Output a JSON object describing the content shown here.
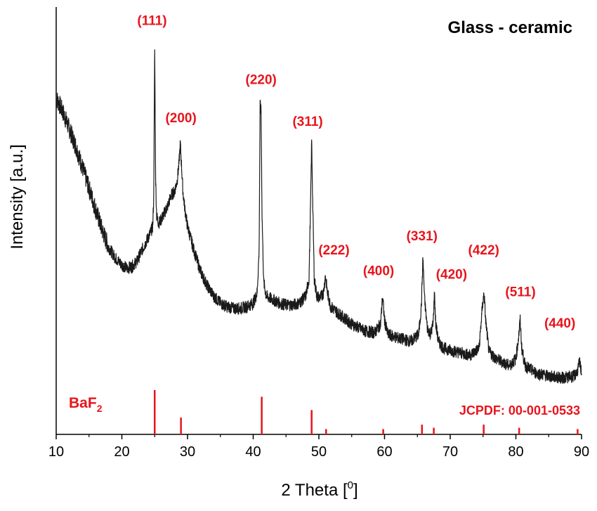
{
  "chart_data": {
    "type": "line",
    "title": "Glass - ceramic",
    "xlabel": "2 Theta",
    "xlabel_unit": "0",
    "ylabel": "Intensity [a.u.]",
    "xlim": [
      10,
      90
    ],
    "ylim": [
      0,
      1
    ],
    "x_ticks": [
      10,
      20,
      30,
      40,
      50,
      60,
      70,
      80,
      90
    ],
    "y_ticks_shown": false,
    "grid": false,
    "colors": {
      "curve": "#1a1a1a",
      "reference": "#e8141c",
      "annotation": "#e8141c",
      "axes": "#000000"
    },
    "series": [
      {
        "x": [
          10,
          11,
          12,
          13,
          14,
          15,
          16,
          17,
          18,
          19,
          20,
          20.8,
          21.5,
          22.3,
          23.0,
          23.8,
          24.3,
          24.7,
          24.85,
          25.0,
          25.15,
          25.3,
          25.6,
          26.0,
          26.5,
          27.0,
          27.5,
          28.0,
          28.4,
          28.7,
          28.9,
          29.1,
          29.3,
          29.6,
          30.0,
          31,
          32,
          33,
          34,
          35,
          36,
          37,
          38,
          39,
          40,
          40.6,
          40.9,
          41.05,
          41.2,
          41.35,
          41.6,
          42.0,
          43,
          44,
          45,
          46,
          47,
          48.0,
          48.5,
          48.75,
          48.9,
          49.05,
          49.3,
          49.7,
          50.2,
          50.7,
          51.0,
          51.3,
          51.8,
          53,
          55,
          57,
          58.5,
          59.4,
          59.7,
          60.0,
          60.5,
          62,
          64,
          65.2,
          65.6,
          65.85,
          66.1,
          66.5,
          67.0,
          67.4,
          67.6,
          67.8,
          68.2,
          69,
          71,
          73,
          74.4,
          74.9,
          75.15,
          75.4,
          75.9,
          77,
          79,
          80.0,
          80.4,
          80.65,
          80.9,
          81.4,
          83,
          85,
          87,
          88.8,
          89.3,
          89.7,
          90
        ],
        "y": [
          0.84,
          0.8,
          0.75,
          0.7,
          0.64,
          0.58,
          0.52,
          0.46,
          0.41,
          0.38,
          0.36,
          0.35,
          0.355,
          0.37,
          0.4,
          0.43,
          0.45,
          0.47,
          0.55,
          0.98,
          0.6,
          0.5,
          0.48,
          0.49,
          0.51,
          0.53,
          0.56,
          0.57,
          0.6,
          0.65,
          0.71,
          0.64,
          0.57,
          0.52,
          0.47,
          0.4,
          0.34,
          0.3,
          0.27,
          0.25,
          0.24,
          0.235,
          0.235,
          0.24,
          0.25,
          0.28,
          0.4,
          0.82,
          0.8,
          0.5,
          0.31,
          0.27,
          0.26,
          0.25,
          0.245,
          0.245,
          0.25,
          0.27,
          0.32,
          0.55,
          0.72,
          0.55,
          0.32,
          0.27,
          0.265,
          0.28,
          0.33,
          0.28,
          0.24,
          0.22,
          0.19,
          0.17,
          0.165,
          0.19,
          0.27,
          0.2,
          0.16,
          0.15,
          0.14,
          0.16,
          0.24,
          0.38,
          0.26,
          0.18,
          0.16,
          0.19,
          0.28,
          0.19,
          0.14,
          0.12,
          0.11,
          0.1,
          0.12,
          0.24,
          0.28,
          0.2,
          0.11,
          0.09,
          0.07,
          0.09,
          0.15,
          0.2,
          0.12,
          0.07,
          0.05,
          0.04,
          0.035,
          0.04,
          0.05,
          0.08,
          0.05
        ]
      }
    ],
    "peak_labels": [
      {
        "label": "(111)",
        "x": 24.6,
        "y": 1.05
      },
      {
        "label": "(200)",
        "x": 29.0,
        "y": 0.77
      },
      {
        "label": "(220)",
        "x": 41.2,
        "y": 0.88
      },
      {
        "label": "(311)",
        "x": 48.3,
        "y": 0.76
      },
      {
        "label": "(222)",
        "x": 52.3,
        "y": 0.39
      },
      {
        "label": "(400)",
        "x": 59.1,
        "y": 0.33
      },
      {
        "label": "(331)",
        "x": 65.7,
        "y": 0.43
      },
      {
        "label": "(420)",
        "x": 70.2,
        "y": 0.32
      },
      {
        "label": "(422)",
        "x": 75.1,
        "y": 0.39
      },
      {
        "label": "(511)",
        "x": 80.7,
        "y": 0.27
      },
      {
        "label": "(440)",
        "x": 86.7,
        "y": 0.18
      }
    ],
    "reference": {
      "label_main": "BaF",
      "label_sub": "2",
      "card": "JCPDF: 00-001-0533",
      "lines": [
        {
          "x": 25.0,
          "h": 1.0
        },
        {
          "x": 29.0,
          "h": 0.38
        },
        {
          "x": 41.3,
          "h": 0.85
        },
        {
          "x": 48.9,
          "h": 0.55
        },
        {
          "x": 51.1,
          "h": 0.12
        },
        {
          "x": 59.8,
          "h": 0.12
        },
        {
          "x": 65.7,
          "h": 0.22
        },
        {
          "x": 67.5,
          "h": 0.15
        },
        {
          "x": 75.1,
          "h": 0.22
        },
        {
          "x": 80.5,
          "h": 0.15
        },
        {
          "x": 89.4,
          "h": 0.12
        }
      ]
    }
  }
}
